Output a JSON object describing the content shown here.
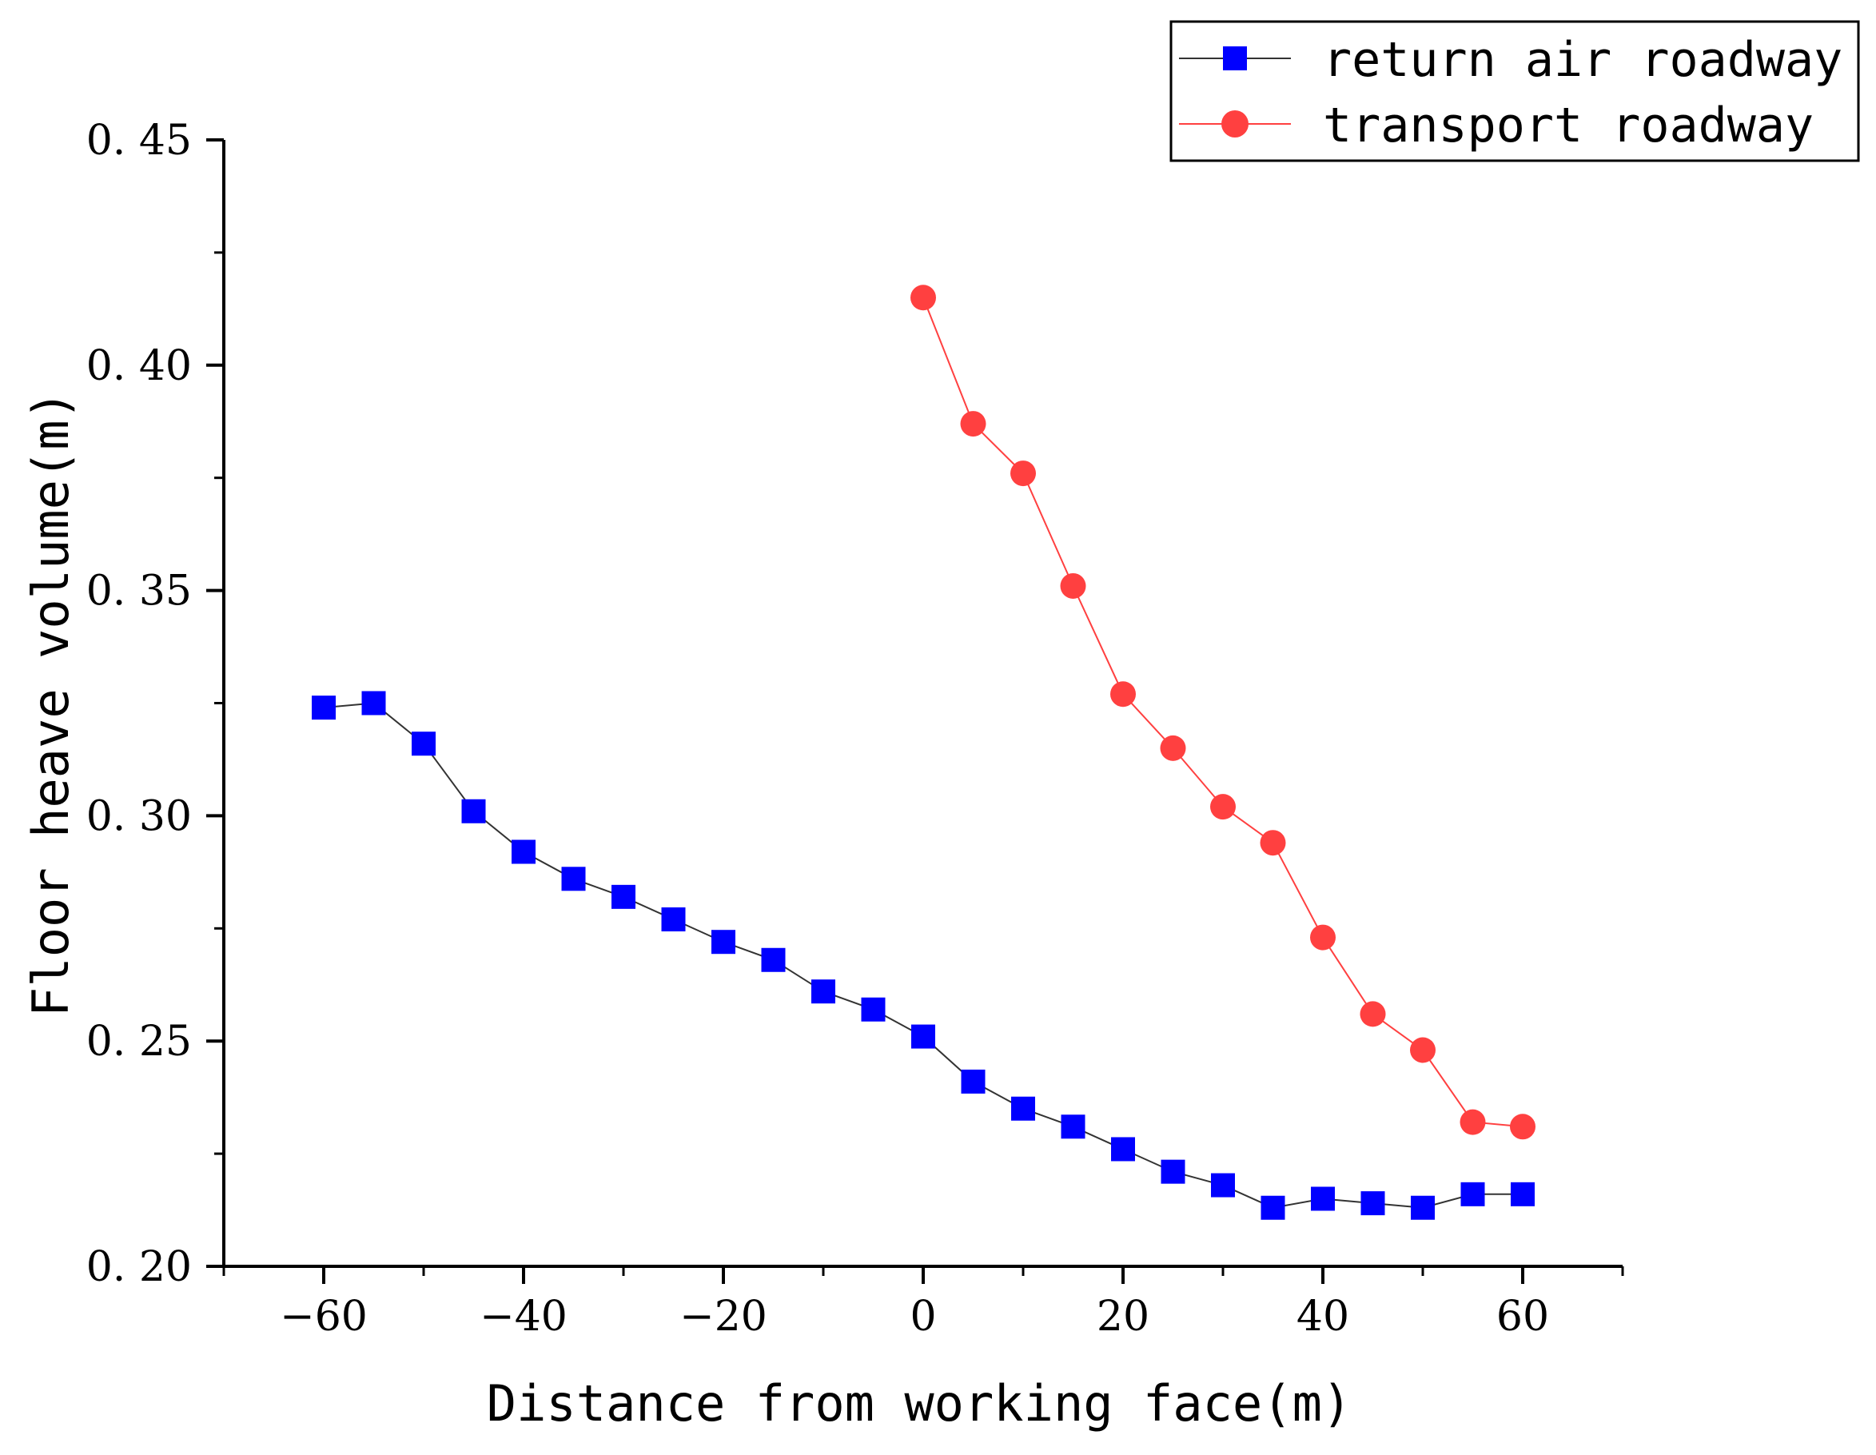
{
  "chart_data": {
    "type": "line",
    "title": "",
    "xlabel": "Distance from working face(m)",
    "ylabel": "Floor heave volume(m)",
    "xlim": [
      -70,
      70
    ],
    "ylim": [
      0.2,
      0.45
    ],
    "x_ticks": [
      -60,
      -40,
      -20,
      0,
      20,
      40,
      60
    ],
    "x_tick_labels": [
      "−60",
      "−40",
      "−20",
      "0",
      "20",
      "40",
      "60"
    ],
    "y_ticks": [
      0.2,
      0.25,
      0.3,
      0.35,
      0.4,
      0.45
    ],
    "y_tick_labels": [
      "0. 20",
      "0. 25",
      "0. 30",
      "0. 35",
      "0. 40",
      "0. 45"
    ],
    "grid": false,
    "legend_position": "top-right",
    "series": [
      {
        "name": "return air roadway",
        "color": "#0000ff",
        "line_color": "#333333",
        "marker": "square",
        "x": [
          -60,
          -55,
          -50,
          -45,
          -40,
          -35,
          -30,
          -25,
          -20,
          -15,
          -10,
          -5,
          0,
          5,
          10,
          15,
          20,
          25,
          30,
          35,
          40,
          45,
          50,
          55,
          60
        ],
        "values": [
          0.324,
          0.325,
          0.316,
          0.301,
          0.292,
          0.286,
          0.282,
          0.277,
          0.272,
          0.268,
          0.261,
          0.257,
          0.251,
          0.241,
          0.235,
          0.231,
          0.226,
          0.221,
          0.218,
          0.213,
          0.215,
          0.214,
          0.213,
          0.216,
          0.216
        ]
      },
      {
        "name": "transport roadway",
        "color": "#ff4040",
        "line_color": "#ff4040",
        "marker": "circle",
        "x": [
          0,
          5,
          10,
          15,
          20,
          25,
          30,
          35,
          40,
          45,
          50,
          55,
          60
        ],
        "values": [
          0.415,
          0.387,
          0.376,
          0.351,
          0.327,
          0.315,
          0.302,
          0.294,
          0.273,
          0.256,
          0.248,
          0.232,
          0.231
        ]
      }
    ]
  }
}
